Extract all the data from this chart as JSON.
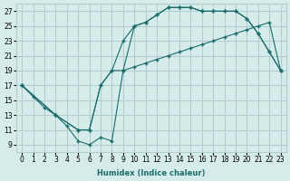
{
  "xlabel": "Humidex (Indice chaleur)",
  "ylabel": "",
  "xlim": [
    -0.5,
    23.5
  ],
  "ylim": [
    8,
    28
  ],
  "yticks": [
    9,
    11,
    13,
    15,
    17,
    19,
    21,
    23,
    25,
    27
  ],
  "xticks": [
    0,
    1,
    2,
    3,
    4,
    5,
    6,
    7,
    8,
    9,
    10,
    11,
    12,
    13,
    14,
    15,
    16,
    17,
    18,
    19,
    20,
    21,
    22,
    23
  ],
  "bg_color": "#d6ecea",
  "grid_color": "#b0cece",
  "line_color": "#1a6b6b",
  "line1_x": [
    0,
    1,
    2,
    3,
    4,
    5,
    6,
    7,
    8,
    9,
    10,
    11,
    12,
    13,
    14,
    15,
    16,
    17,
    18,
    19,
    20,
    21,
    22,
    23
  ],
  "line1_y": [
    17,
    15.5,
    14,
    13,
    11.5,
    9.5,
    9,
    10,
    9.5,
    19,
    25,
    25.5,
    26.5,
    27.5,
    27.5,
    27.5,
    27,
    27,
    27,
    27,
    26,
    24,
    21.5,
    19
  ],
  "line2_x": [
    0,
    3,
    5,
    6,
    7,
    8,
    9,
    10,
    11,
    12,
    13,
    14,
    15,
    16,
    17,
    18,
    19,
    20,
    21,
    22,
    23
  ],
  "line2_y": [
    17,
    13,
    11,
    11,
    17,
    19,
    23,
    25,
    25.5,
    26.5,
    27.5,
    27.5,
    27.5,
    27,
    27,
    27,
    27,
    26,
    24,
    21.5,
    19
  ],
  "line3_x": [
    0,
    3,
    5,
    6,
    7,
    8,
    9,
    10,
    11,
    12,
    13,
    14,
    15,
    16,
    17,
    18,
    19,
    20,
    21,
    22,
    23
  ],
  "line3_y": [
    17,
    13,
    11,
    11,
    17,
    19,
    19,
    19.5,
    20,
    20.5,
    21,
    21.5,
    22,
    22.5,
    23,
    23.5,
    24,
    24.5,
    25,
    25.5,
    19
  ]
}
